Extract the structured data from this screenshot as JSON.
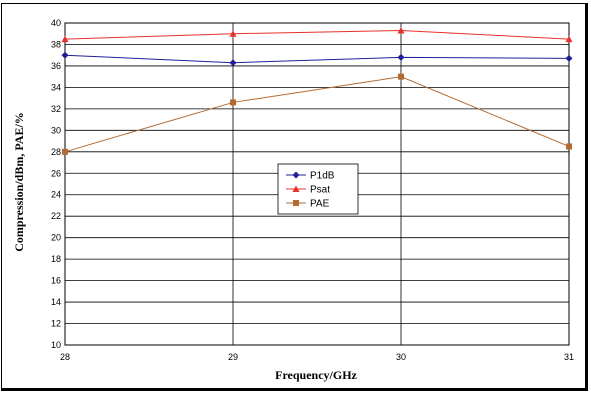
{
  "chart_data": {
    "type": "line",
    "title": "",
    "xlabel": "Frequency/GHz",
    "ylabel": "Compression/dBm, PAE/%",
    "x": [
      28,
      29,
      30,
      31
    ],
    "x_ticks": [
      "28",
      "29",
      "30",
      "31"
    ],
    "ylim": [
      10,
      40
    ],
    "y_ticks": [
      "10",
      "12",
      "14",
      "16",
      "18",
      "20",
      "22",
      "24",
      "26",
      "28",
      "30",
      "32",
      "34",
      "36",
      "38",
      "40"
    ],
    "grid": true,
    "legend_position": "center",
    "series": [
      {
        "name": "P1dB",
        "values": [
          37.0,
          36.3,
          36.8,
          36.7
        ],
        "color": "#1f1f99",
        "marker": "diamond"
      },
      {
        "name": "Psat",
        "values": [
          38.5,
          39.0,
          39.3,
          38.5
        ],
        "color": "#e8302a",
        "marker": "triangle"
      },
      {
        "name": "PAE",
        "values": [
          28.0,
          32.6,
          35.0,
          28.5
        ],
        "color": "#b36a33",
        "marker": "square"
      }
    ]
  }
}
